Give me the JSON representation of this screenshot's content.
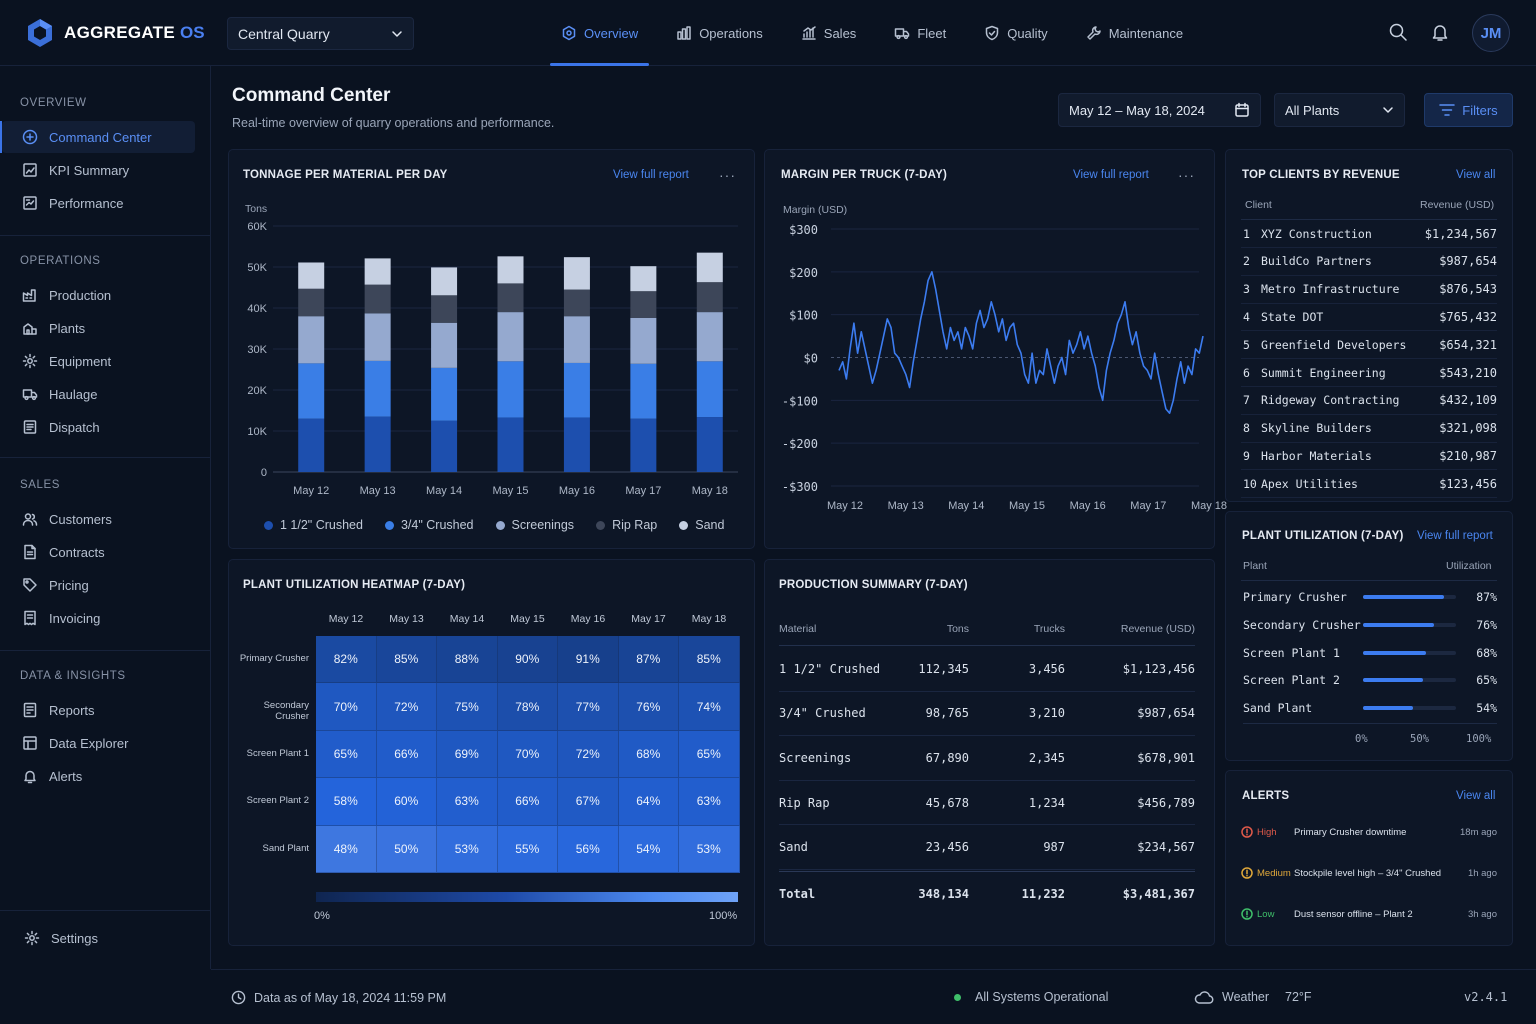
{
  "brand": {
    "name": "AGGREGATE",
    "suffix": "OS"
  },
  "site_selector": {
    "value": "Central Quarry"
  },
  "nav": [
    {
      "label": "Overview",
      "icon": "overview-icon",
      "active": true
    },
    {
      "label": "Operations",
      "icon": "operations-icon"
    },
    {
      "label": "Sales",
      "icon": "sales-icon"
    },
    {
      "label": "Fleet",
      "icon": "truck-icon"
    },
    {
      "label": "Quality",
      "icon": "shield-icon"
    },
    {
      "label": "Maintenance",
      "icon": "wrench-icon"
    }
  ],
  "user": {
    "initials": "JM"
  },
  "sidebar": {
    "sections": [
      {
        "title": "OVERVIEW",
        "items": [
          {
            "label": "Command Center",
            "icon": "plus-circle-icon",
            "active": true
          },
          {
            "label": "KPI Summary",
            "icon": "kpi-icon"
          },
          {
            "label": "Performance",
            "icon": "performance-icon"
          }
        ]
      },
      {
        "title": "OPERATIONS",
        "items": [
          {
            "label": "Production",
            "icon": "factory-icon"
          },
          {
            "label": "Plants",
            "icon": "plant-icon"
          },
          {
            "label": "Equipment",
            "icon": "gear-icon"
          },
          {
            "label": "Haulage",
            "icon": "truck-icon"
          },
          {
            "label": "Dispatch",
            "icon": "dispatch-icon"
          }
        ]
      },
      {
        "title": "SALES",
        "items": [
          {
            "label": "Customers",
            "icon": "users-icon"
          },
          {
            "label": "Contracts",
            "icon": "document-icon"
          },
          {
            "label": "Pricing",
            "icon": "tag-icon"
          },
          {
            "label": "Invoicing",
            "icon": "invoice-icon"
          }
        ]
      },
      {
        "title": "DATA & INSIGHTS",
        "items": [
          {
            "label": "Reports",
            "icon": "report-icon"
          },
          {
            "label": "Data Explorer",
            "icon": "explorer-icon"
          },
          {
            "label": "Alerts",
            "icon": "bell-icon"
          }
        ]
      }
    ],
    "settings_label": "Settings"
  },
  "header": {
    "title": "Command Center",
    "subtitle": "Real-time overview of quarry operations and performance.",
    "date_range": "May 12 – May 18, 2024",
    "plant_filter": "All Plants",
    "filters_label": "Filters"
  },
  "tonnage": {
    "title": "TONNAGE PER MATERIAL PER DAY",
    "link": "View full report",
    "more": "···"
  },
  "margin": {
    "title": "MARGIN PER TRUCK (7-DAY)",
    "link": "View full report",
    "more": "···"
  },
  "clients": {
    "title": "TOP CLIENTS BY REVENUE",
    "link": "View all",
    "headers": [
      "Client",
      "Revenue (USD)"
    ],
    "rows": [
      {
        "rank": "1",
        "name": "XYZ Construction",
        "revenue": "$1,234,567"
      },
      {
        "rank": "2",
        "name": "BuildCo Partners",
        "revenue": "$987,654"
      },
      {
        "rank": "3",
        "name": "Metro Infrastructure",
        "revenue": "$876,543"
      },
      {
        "rank": "4",
        "name": "State DOT",
        "revenue": "$765,432"
      },
      {
        "rank": "5",
        "name": "Greenfield Developers",
        "revenue": "$654,321"
      },
      {
        "rank": "6",
        "name": "Summit Engineering",
        "revenue": "$543,210"
      },
      {
        "rank": "7",
        "name": "Ridgeway Contracting",
        "revenue": "$432,109"
      },
      {
        "rank": "8",
        "name": "Skyline Builders",
        "revenue": "$321,098"
      },
      {
        "rank": "9",
        "name": "Harbor Materials",
        "revenue": "$210,987"
      },
      {
        "rank": "10",
        "name": "Apex Utilities",
        "revenue": "$123,456"
      }
    ]
  },
  "utilization": {
    "title": "PLANT UTILIZATION (7-DAY)",
    "link": "View full report",
    "headers": [
      "Plant",
      "Utilization"
    ],
    "rows": [
      {
        "plant": "Primary Crusher",
        "value": 87,
        "label": "87%"
      },
      {
        "plant": "Secondary Crusher",
        "value": 76,
        "label": "76%"
      },
      {
        "plant": "Screen Plant 1",
        "value": 68,
        "label": "68%"
      },
      {
        "plant": "Screen Plant 2",
        "value": 65,
        "label": "65%"
      },
      {
        "plant": "Sand Plant",
        "value": 54,
        "label": "54%"
      }
    ],
    "axis": [
      "0%",
      "50%",
      "100%"
    ]
  },
  "heatmap": {
    "title": "PLANT UTILIZATION HEATMAP (7-DAY)",
    "days": [
      "May 12",
      "May 13",
      "May 14",
      "May 15",
      "May 16",
      "May 17",
      "May 18"
    ],
    "plants": [
      "Primary Crusher",
      "Secondary Crusher",
      "Screen Plant 1",
      "Screen Plant 2",
      "Sand Plant"
    ],
    "values": [
      [
        82,
        85,
        88,
        90,
        91,
        87,
        85
      ],
      [
        70,
        72,
        75,
        78,
        77,
        76,
        74
      ],
      [
        65,
        66,
        69,
        70,
        72,
        68,
        65
      ],
      [
        58,
        60,
        63,
        66,
        67,
        64,
        63
      ],
      [
        48,
        50,
        53,
        55,
        56,
        54,
        53
      ]
    ],
    "scale_min": "0%",
    "scale_max": "100%"
  },
  "production": {
    "title": "PRODUCTION SUMMARY (7-DAY)",
    "headers": [
      "Material",
      "Tons",
      "Trucks",
      "Revenue (USD)"
    ],
    "rows": [
      {
        "material": "1 1/2\" Crushed",
        "tons": "112,345",
        "trucks": "3,456",
        "revenue": "$1,123,456"
      },
      {
        "material": "3/4\" Crushed",
        "tons": "98,765",
        "trucks": "3,210",
        "revenue": "$987,654"
      },
      {
        "material": "Screenings",
        "tons": "67,890",
        "trucks": "2,345",
        "revenue": "$678,901"
      },
      {
        "material": "Rip Rap",
        "tons": "45,678",
        "trucks": "1,234",
        "revenue": "$456,789"
      },
      {
        "material": "Sand",
        "tons": "23,456",
        "trucks": "987",
        "revenue": "$234,567"
      }
    ],
    "total": {
      "material": "Total",
      "tons": "348,134",
      "trucks": "11,232",
      "revenue": "$3,481,367"
    }
  },
  "alerts": {
    "title": "ALERTS",
    "link": "View all",
    "items": [
      {
        "level": "High",
        "color": "#e05a4a",
        "message": "Primary Crusher downtime",
        "time": "18m ago"
      },
      {
        "level": "Medium",
        "color": "#e0a83a",
        "message": "Stockpile level high – 3/4\" Crushed",
        "time": "1h ago"
      },
      {
        "level": "Low",
        "color": "#3fbf6a",
        "message": "Dust sensor offline – Plant 2",
        "time": "3h ago"
      }
    ]
  },
  "footer": {
    "data_as_of": "Data as of May 18, 2024 11:59 PM",
    "status": "All Systems Operational",
    "weather_label": "Weather",
    "temperature": "72°F",
    "version": "v2.4.1"
  },
  "colors": {
    "accent": "#3b74e8",
    "background": "#0a1220",
    "card": "#0d1626",
    "status_ok": "#3fbf6a"
  },
  "chart_data": [
    {
      "type": "bar",
      "stacked": true,
      "title": "TONNAGE PER MATERIAL PER DAY",
      "ylabel": "Tons",
      "ylim": [
        0,
        60000
      ],
      "yticks": [
        "0",
        "10K",
        "20K",
        "30K",
        "40K",
        "50K",
        "60K"
      ],
      "categories": [
        "May 12",
        "May 13",
        "May 14",
        "May 15",
        "May 16",
        "May 17",
        "May 18"
      ],
      "series": [
        {
          "name": "1 1/2\" Crushed",
          "color": "#1d4fae",
          "values": [
            13000,
            13500,
            12500,
            13300,
            13300,
            13000,
            13400
          ]
        },
        {
          "name": "3/4\" Crushed",
          "color": "#3a7ee6",
          "values": [
            13500,
            13600,
            12900,
            13700,
            13300,
            13400,
            13600
          ]
        },
        {
          "name": "Screenings",
          "color": "#95a9cf",
          "values": [
            11500,
            11600,
            11000,
            12000,
            11400,
            11200,
            12000
          ]
        },
        {
          "name": "Rip Rap",
          "color": "#3d4659",
          "values": [
            6700,
            7000,
            6700,
            7000,
            6500,
            6500,
            7300
          ]
        },
        {
          "name": "Sand",
          "color": "#c6d0e2",
          "values": [
            6400,
            6400,
            6800,
            6600,
            7900,
            6100,
            7200
          ]
        }
      ],
      "legend": "bottom",
      "grid": true
    },
    {
      "type": "line",
      "title": "MARGIN PER TRUCK (7-DAY)",
      "ylabel": "Margin (USD)",
      "ylim": [
        -300,
        300
      ],
      "yticks": [
        "$300",
        "$200",
        "$100",
        "$0",
        "-$100",
        "-$200",
        "-$300"
      ],
      "xticks": [
        "May 12",
        "May 13",
        "May 14",
        "May 15",
        "May 16",
        "May 17",
        "May 18"
      ],
      "series": [
        {
          "name": "Margin",
          "color": "#3c7cf0",
          "values": [
            -30,
            -10,
            -50,
            20,
            80,
            10,
            60,
            20,
            -20,
            -60,
            -30,
            10,
            50,
            90,
            70,
            10,
            0,
            -20,
            -40,
            -70,
            -10,
            40,
            90,
            130,
            180,
            200,
            160,
            110,
            60,
            20,
            70,
            40,
            60,
            20,
            70,
            50,
            20,
            80,
            110,
            70,
            90,
            130,
            100,
            60,
            90,
            40,
            70,
            80,
            30,
            10,
            -40,
            -60,
            10,
            -60,
            -30,
            -40,
            20,
            -20,
            -60,
            -20,
            0,
            -40,
            40,
            10,
            30,
            60,
            20,
            50,
            10,
            -20,
            -70,
            -100,
            -30,
            10,
            40,
            80,
            100,
            130,
            70,
            30,
            60,
            10,
            -20,
            -30,
            -50,
            10,
            -40,
            -80,
            -120,
            -130,
            -100,
            -50,
            -10,
            -60,
            -20,
            -40,
            20,
            10,
            50
          ]
        }
      ],
      "grid": true
    },
    {
      "type": "heatmap",
      "title": "PLANT UTILIZATION HEATMAP (7-DAY)",
      "x": [
        "May 12",
        "May 13",
        "May 14",
        "May 15",
        "May 16",
        "May 17",
        "May 18"
      ],
      "y": [
        "Primary Crusher",
        "Secondary Crusher",
        "Screen Plant 1",
        "Screen Plant 2",
        "Sand Plant"
      ],
      "range": [
        0,
        100
      ]
    }
  ]
}
